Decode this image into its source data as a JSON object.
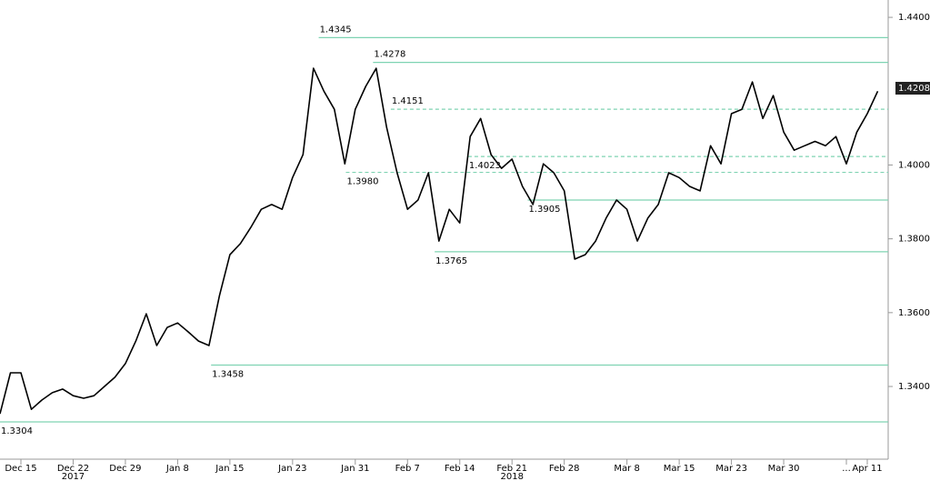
{
  "chart_data": {
    "type": "line",
    "series": [
      {
        "color": "#000000",
        "x": [
          -2,
          -1,
          0,
          1,
          2,
          3,
          4,
          5,
          6,
          7,
          8,
          9,
          10,
          11,
          12,
          13,
          14,
          15,
          16,
          17,
          18,
          19,
          20,
          21,
          22,
          23,
          24,
          25,
          26,
          27,
          28,
          29,
          30,
          31,
          32,
          33,
          34,
          35,
          36,
          37,
          38,
          39,
          40,
          41,
          42,
          43,
          44,
          45,
          46,
          47,
          48,
          49,
          50,
          51,
          52,
          53,
          54,
          55,
          56,
          57,
          58,
          59,
          60,
          61,
          62,
          63,
          64,
          65,
          66,
          67,
          68,
          69,
          70,
          71,
          72,
          73,
          74,
          75,
          76,
          77,
          78,
          79,
          80,
          81,
          82
        ],
        "values": [
          1.3326,
          1.3437,
          1.3437,
          1.3338,
          1.3363,
          1.3383,
          1.3393,
          1.3375,
          1.3368,
          1.3375,
          1.34,
          1.3425,
          1.3462,
          1.3523,
          1.3597,
          1.3511,
          1.356,
          1.3572,
          1.3548,
          1.3523,
          1.3511,
          1.3646,
          1.3757,
          1.3787,
          1.3831,
          1.388,
          1.3893,
          1.388,
          1.3966,
          1.4028,
          1.4262,
          1.42,
          1.4151,
          1.4003,
          1.4151,
          1.4213,
          1.4262,
          1.4102,
          1.3979,
          1.388,
          1.3905,
          1.3979,
          1.3794,
          1.388,
          1.3843,
          1.4077,
          1.4126,
          1.4028,
          1.3991,
          1.4016,
          1.3942,
          1.3893,
          1.4003,
          1.3979,
          1.393,
          1.3745,
          1.3757,
          1.3794,
          1.3856,
          1.3905,
          1.388,
          1.3794,
          1.3856,
          1.3893,
          1.3979,
          1.3966,
          1.3942,
          1.393,
          1.4052,
          1.4003,
          1.4139,
          1.4151,
          1.4225,
          1.4126,
          1.4188,
          1.4089,
          1.404,
          1.4052,
          1.4064,
          1.4052,
          1.4077,
          1.4003,
          1.4089,
          1.4139,
          1.42
        ]
      }
    ],
    "xlim": [
      -2,
      83
    ],
    "ylim": [
      1.3203,
      1.4447
    ],
    "xticks": [
      {
        "value": 0,
        "label": "Dec 15"
      },
      {
        "value": 5,
        "label": "Dec 22"
      },
      {
        "value": 10,
        "label": "Dec 29"
      },
      {
        "value": 15,
        "label": "Jan 8"
      },
      {
        "value": 20,
        "label": "Jan 15"
      },
      {
        "value": 26,
        "label": "Jan 23"
      },
      {
        "value": 32,
        "label": "Jan 31"
      },
      {
        "value": 37,
        "label": "Feb 7"
      },
      {
        "value": 42,
        "label": "Feb 14"
      },
      {
        "value": 47,
        "label": "Feb 21"
      },
      {
        "value": 52,
        "label": "Feb 28"
      },
      {
        "value": 58,
        "label": "Mar 8"
      },
      {
        "value": 63,
        "label": "Mar 15"
      },
      {
        "value": 68,
        "label": "Mar 23"
      },
      {
        "value": 73,
        "label": "Mar 30"
      },
      {
        "value": 79,
        "label": "..."
      },
      {
        "value": 81,
        "label": "Apr 11"
      }
    ],
    "year_labels": [
      {
        "value": 5,
        "label": "2017"
      },
      {
        "value": 47,
        "label": "2018"
      }
    ],
    "yticks": [
      {
        "value": 1.34,
        "label": "1.3400"
      },
      {
        "value": 1.36,
        "label": "1.3600"
      },
      {
        "value": 1.38,
        "label": "1.3800"
      },
      {
        "value": 1.4,
        "label": "1.4000"
      },
      {
        "value": 1.44,
        "label": "1.4400"
      }
    ],
    "level_color": "#7fd3b2",
    "levels": [
      {
        "value": 1.4345,
        "label": "1.4345",
        "style": "solid",
        "from": 28.5,
        "label_side": "above"
      },
      {
        "value": 1.4278,
        "label": "1.4278",
        "style": "solid",
        "from": 33.7,
        "label_side": "above"
      },
      {
        "value": 1.4151,
        "label": "1.4151",
        "style": "dashed",
        "from": 35.4,
        "label_side": "above"
      },
      {
        "value": 1.4023,
        "label": "1.4023",
        "style": "dashed",
        "from": 42.8,
        "label_side": "below"
      },
      {
        "value": 1.398,
        "label": "1.3980",
        "style": "dashed",
        "from": 31.1,
        "label_side": "below"
      },
      {
        "value": 1.3905,
        "label": "1.3905",
        "style": "solid",
        "from": 48.5,
        "label_side": "below"
      },
      {
        "value": 1.3765,
        "label": "1.3765",
        "style": "solid",
        "from": 39.6,
        "label_side": "below"
      },
      {
        "value": 1.3458,
        "label": "1.3458",
        "style": "solid",
        "from": 18.2,
        "label_side": "below"
      },
      {
        "value": 1.3304,
        "label": "1.3304",
        "style": "solid",
        "from": -2,
        "label_side": "below"
      }
    ],
    "last_value": {
      "value": 1.4208,
      "label": "1.4208"
    }
  }
}
